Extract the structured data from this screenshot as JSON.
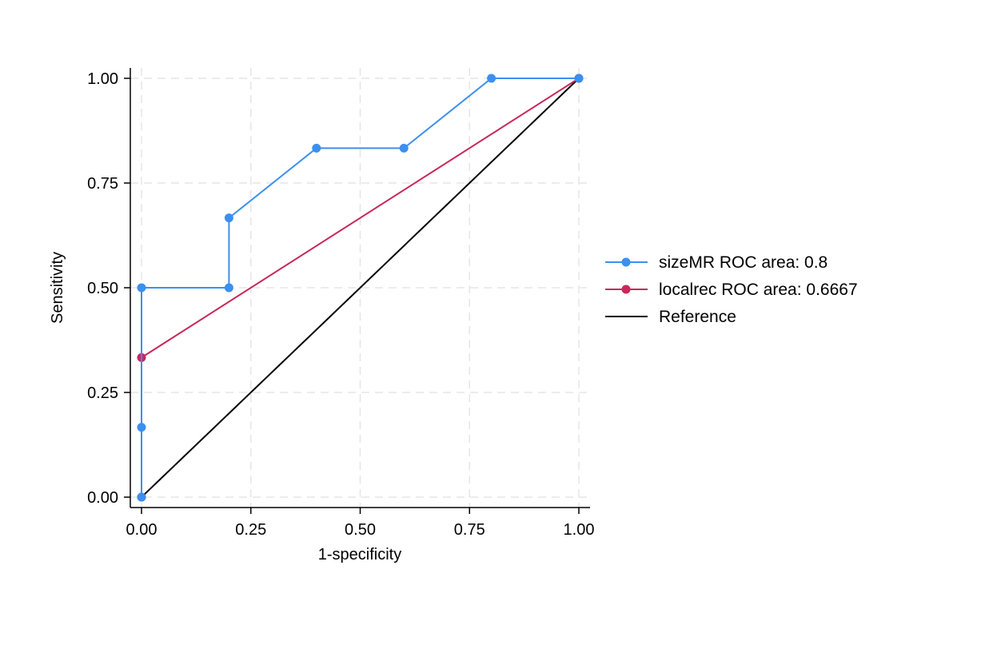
{
  "chart_data": {
    "type": "line",
    "xlabel": "1-specificity",
    "ylabel": "Sensitivity",
    "xlim": [
      0,
      1
    ],
    "ylim": [
      0,
      1
    ],
    "x_ticks": [
      "0.00",
      "0.25",
      "0.50",
      "0.75",
      "1.00"
    ],
    "y_ticks": [
      "0.00",
      "0.25",
      "0.50",
      "0.75",
      "1.00"
    ],
    "grid": true,
    "legend_position": "right",
    "series": [
      {
        "name": "sizeMR ROC area: 0.8",
        "color": "#3b8ff0",
        "markers": true,
        "x": [
          0,
          0,
          0,
          0.2,
          0.2,
          0.4,
          0.6,
          0.8,
          1.0
        ],
        "y": [
          0,
          0.1667,
          0.5,
          0.5,
          0.6667,
          0.8333,
          0.8333,
          1.0,
          1.0
        ]
      },
      {
        "name": "localrec ROC area: 0.6667",
        "color": "#c8285a",
        "markers": true,
        "x": [
          0,
          0,
          1.0
        ],
        "y": [
          0,
          0.3333,
          1.0
        ]
      },
      {
        "name": "Reference",
        "color": "#000000",
        "markers": false,
        "x": [
          0,
          1.0
        ],
        "y": [
          0,
          1.0
        ]
      }
    ]
  }
}
